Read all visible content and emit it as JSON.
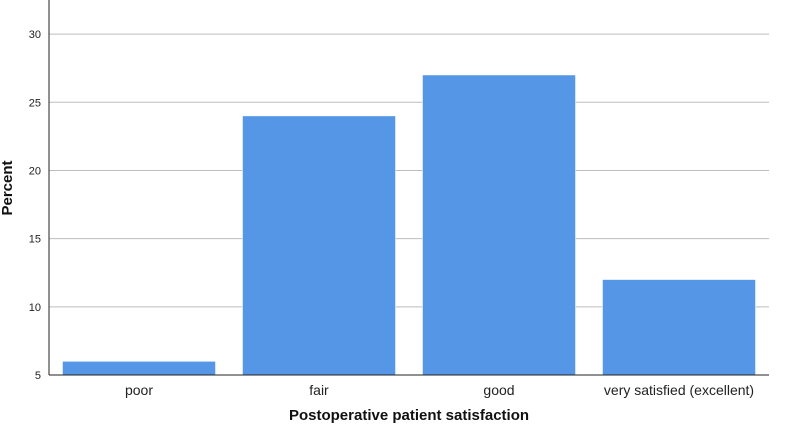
{
  "chart_data": {
    "type": "bar",
    "categories": [
      "poor",
      "fair",
      "good",
      "very satisfied (excellent)"
    ],
    "values": [
      6,
      24,
      27,
      12
    ],
    "xlabel": "Postoperative patient satisfaction",
    "ylabel": "Percent",
    "ylim": [
      5,
      32.5
    ],
    "yticks": [
      5,
      10,
      15,
      20,
      25,
      30
    ],
    "grid": true,
    "bar_color": "#5596e6"
  }
}
